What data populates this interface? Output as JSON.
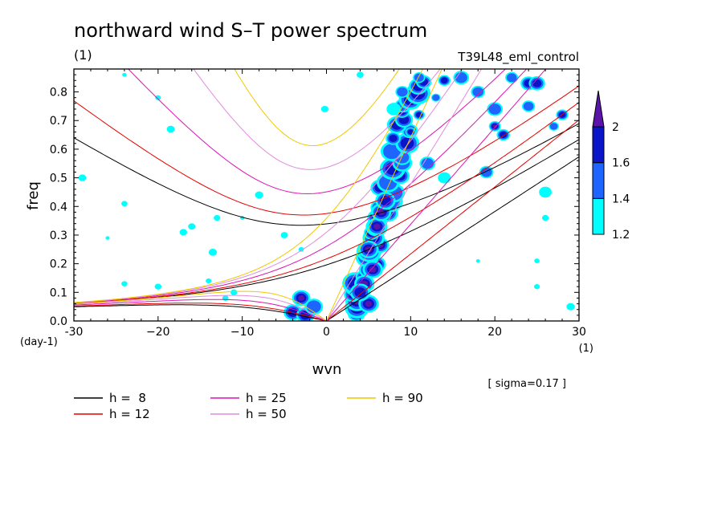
{
  "chart_data": {
    "type": "heatmap",
    "title": "northward wind S–T power spectrum",
    "subtitle_left": "(1)",
    "subtitle_right": "T39L48_eml_control",
    "xlabel": "wvn",
    "ylabel": "freq",
    "x_unit_label": "(1)",
    "y_unit_label": "(day-1)",
    "xlim": [
      -30,
      30
    ],
    "ylim": [
      0.0,
      0.88
    ],
    "x_ticks": [
      -30,
      -20,
      -10,
      0,
      10,
      20,
      30
    ],
    "x_tick_labels": [
      "-30",
      "−20",
      "−10",
      "0",
      "10",
      "20",
      "30"
    ],
    "y_ticks": [
      0.0,
      0.1,
      0.2,
      0.3,
      0.4,
      0.5,
      0.6,
      0.7,
      0.8
    ],
    "y_tick_labels": [
      "0.0",
      "0.1",
      "0.2",
      "0.3",
      "0.4",
      "0.5",
      "0.6",
      "0.7",
      "0.8"
    ],
    "annotation": "[ sigma=0.17 ]",
    "colorbar": {
      "levels": [
        1.2,
        1.4,
        1.6,
        2
      ],
      "labels": [
        "1.2",
        "1.4",
        "1.6",
        "2"
      ],
      "colors": [
        "#00ffff",
        "#1e64ff",
        "#0a14c8",
        "#5a14aa"
      ]
    },
    "dispersion_curves": [
      {
        "label": "h =  8",
        "h": 8,
        "color": "#000000"
      },
      {
        "label": "h = 12",
        "h": 12,
        "color": "#e60000"
      },
      {
        "label": "h = 25",
        "h": 25,
        "color": "#dc14b4"
      },
      {
        "label": "h = 50",
        "h": 50,
        "color": "#e08cdc"
      },
      {
        "label": "h = 90",
        "h": 90,
        "color": "#f0c800"
      }
    ],
    "spectral_peaks": [
      {
        "wvn": 5,
        "freq": 0.25,
        "level": 2
      },
      {
        "wvn": 6,
        "freq": 0.35,
        "level": 2
      },
      {
        "wvn": 6,
        "freq": 0.45,
        "level": 1.6
      },
      {
        "wvn": 5,
        "freq": 0.12,
        "level": 2
      },
      {
        "wvn": -3,
        "freq": 0.08,
        "level": 2
      },
      {
        "wvn": 10,
        "freq": 0.65,
        "level": 1.6
      },
      {
        "wvn": 20,
        "freq": 0.68,
        "level": 2
      },
      {
        "wvn": 28,
        "freq": 0.73,
        "level": 1.6
      }
    ]
  }
}
